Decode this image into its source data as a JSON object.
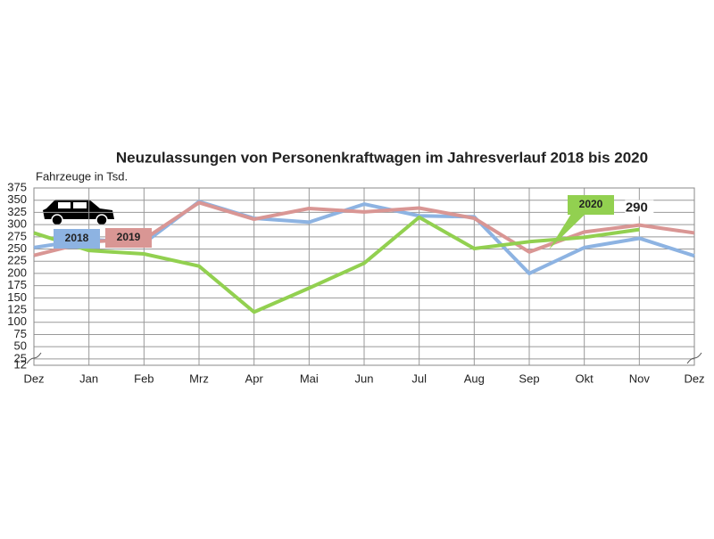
{
  "chart_data": {
    "type": "line",
    "title": "Neuzulassungen von Personenkraftwagen im Jahresverlauf 2018 bis 2020",
    "y_label": "Fahrzeuge in Tsd.",
    "categories": [
      "Dez",
      "Jan",
      "Feb",
      "Mrz",
      "Apr",
      "Mai",
      "Jun",
      "Jul",
      "Aug",
      "Sep",
      "Okt",
      "Nov",
      "Dez"
    ],
    "series": [
      {
        "name": "2018",
        "color": "#8db3e2",
        "values": [
          253,
          270,
          262,
          347,
          313,
          305,
          342,
          318,
          316,
          200,
          253,
          272,
          236
        ]
      },
      {
        "name": "2019",
        "color": "#d99694",
        "values": [
          237,
          265,
          270,
          345,
          311,
          333,
          326,
          334,
          313,
          244,
          285,
          299,
          283
        ]
      },
      {
        "name": "2020",
        "color": "#92d050",
        "values": [
          283,
          247,
          240,
          215,
          121,
          170,
          221,
          315,
          251,
          265,
          274,
          290,
          null
        ],
        "value_labels": [
          null,
          null,
          null,
          null,
          null,
          null,
          null,
          null,
          null,
          null,
          null,
          "290",
          null
        ]
      }
    ],
    "ylim": [
      12,
      375
    ],
    "yticks": [
      12,
      25,
      50,
      75,
      100,
      125,
      150,
      175,
      200,
      225,
      250,
      275,
      300,
      325,
      350,
      375
    ],
    "grid": true
  }
}
